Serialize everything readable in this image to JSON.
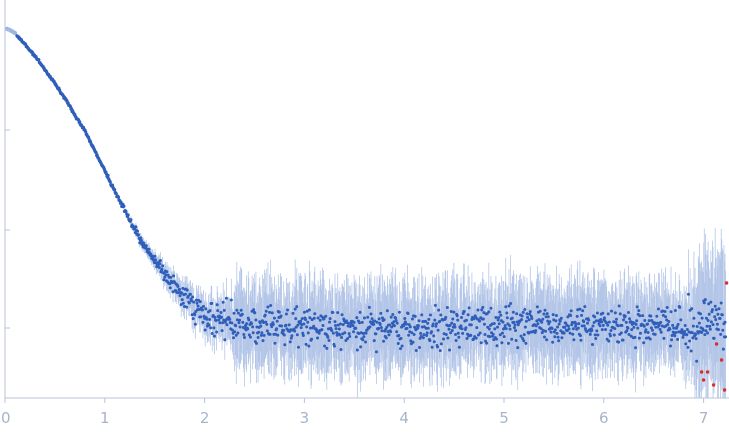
{
  "chart_data": {
    "type": "scatter",
    "title": "",
    "xlabel": "",
    "ylabel": "",
    "xlim": [
      0,
      7.25
    ],
    "y_scale": "log",
    "y_tick_labels": [],
    "x_ticks": [
      0,
      1,
      2,
      3,
      4,
      5,
      6,
      7
    ],
    "x_tick_labels": [
      "0",
      "1",
      "2",
      "3",
      "4",
      "5",
      "6",
      "7"
    ],
    "grid": false,
    "legend": "none",
    "colors": {
      "points": "#2f5fba",
      "error_bars": "#b4c6e8",
      "excluded_points": "#9db6e0",
      "outliers": "#d62f2f",
      "axis": "#b8c3d8"
    },
    "series": [
      {
        "x": [
          0.03,
          0.07,
          0.12,
          0.2,
          0.3,
          0.4,
          0.5,
          0.6,
          0.7,
          0.8,
          0.9,
          1.0,
          1.1,
          1.2,
          1.3,
          1.4,
          1.5,
          1.6,
          1.7,
          1.8,
          1.9,
          2.0,
          2.2,
          2.4,
          2.6,
          2.8,
          3.0,
          3.5,
          4.0,
          4.5,
          5.0,
          5.5,
          6.0,
          6.5,
          7.0,
          7.2
        ],
        "y_relative": [
          1.0,
          0.97,
          0.93,
          0.82,
          0.7,
          0.58,
          0.48,
          0.39,
          0.31,
          0.25,
          0.19,
          0.145,
          0.108,
          0.083,
          0.064,
          0.051,
          0.042,
          0.035,
          0.029,
          0.025,
          0.022,
          0.02,
          0.018,
          0.017,
          0.017,
          0.017,
          0.017,
          0.017,
          0.016,
          0.017,
          0.017,
          0.017,
          0.017,
          0.017,
          0.017,
          0.018
        ]
      }
    ]
  }
}
